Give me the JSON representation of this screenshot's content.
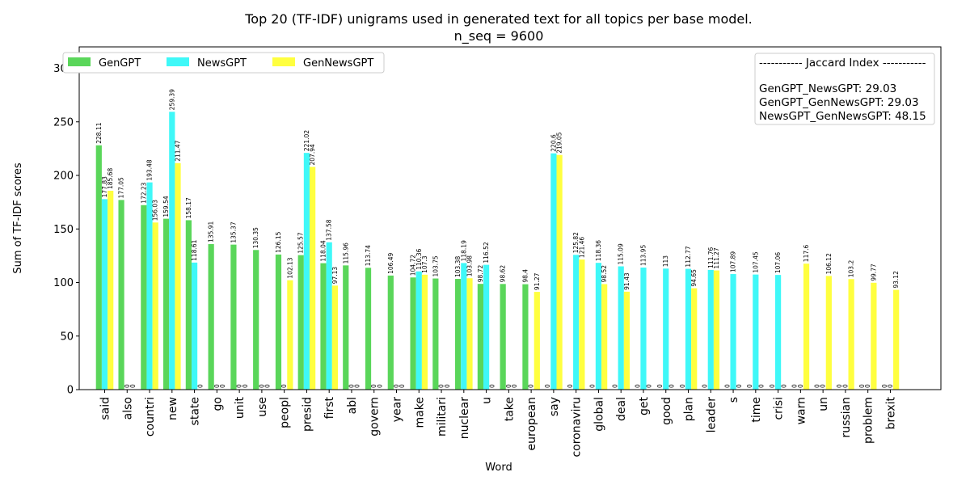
{
  "chart_data": {
    "type": "bar",
    "title_line1": "Top 20 (TF-IDF) unigrams used in generated text for all topics per base model.",
    "title_line2": "n_seq = 9600",
    "xlabel": "Word",
    "ylabel": "Sum of TF-IDF scores",
    "ylim": [
      0,
      320
    ],
    "yticks": [
      0,
      50,
      100,
      150,
      200,
      250,
      300
    ],
    "legend_position": "top-left",
    "grid": false,
    "categories": [
      "said",
      "also",
      "countri",
      "new",
      "state",
      "go",
      "unit",
      "use",
      "peopl",
      "presid",
      "first",
      "abl",
      "govern",
      "year",
      "make",
      "militari",
      "nuclear",
      "u",
      "take",
      "european",
      "say",
      "coronaviru",
      "global",
      "deal",
      "get",
      "good",
      "plan",
      "leader",
      "s",
      "time",
      "crisi",
      "warn",
      "un",
      "russian",
      "problem",
      "brexit"
    ],
    "series": [
      {
        "name": "GenGPT",
        "color": "#5ad65a",
        "values": [
          228.11,
          177.05,
          172.23,
          159.54,
          158.17,
          135.91,
          135.37,
          130.35,
          126.15,
          125.57,
          118.04,
          115.96,
          113.74,
          106.49,
          104.72,
          103.75,
          103.38,
          98.72,
          98.62,
          98.4,
          0,
          0,
          0,
          0,
          0,
          0,
          0,
          0,
          0,
          0,
          0,
          0,
          0,
          0,
          0,
          0
        ],
        "labels": [
          "228.11",
          "177.05",
          "172.23",
          "159.54",
          "158.17",
          "135.91",
          "135.37",
          "130.35",
          "126.15",
          "125.57",
          "118.04",
          "115.96",
          "113.74",
          "106.49",
          "104.72",
          "103.75",
          "103.38",
          "98.72",
          "98.62",
          "98.4",
          "0",
          "0",
          "0",
          "0",
          "0",
          "0",
          "0",
          "0",
          "0",
          "0",
          "0",
          "0",
          "0",
          "0",
          "0",
          "0"
        ]
      },
      {
        "name": "NewsGPT",
        "color": "#3ff8f8",
        "values": [
          177.83,
          0,
          193.48,
          259.39,
          118.61,
          0,
          0,
          0,
          0,
          221.02,
          137.58,
          0,
          0,
          0,
          110.36,
          0,
          118.19,
          116.52,
          0,
          0,
          220.6,
          125.82,
          118.36,
          115.09,
          113.95,
          113,
          112.77,
          111.76,
          107.89,
          107.45,
          107.06,
          0,
          0,
          0,
          0,
          0
        ],
        "labels": [
          "177.83",
          "0",
          "193.48",
          "259.39",
          "118.61",
          "0",
          "0",
          "0",
          "0",
          "221.02",
          "137.58",
          "0",
          "0",
          "0",
          "110.36",
          "0",
          "118.19",
          "116.52",
          "0",
          "0",
          "220.6",
          "125.82",
          "118.36",
          "115.09",
          "113.95",
          "113",
          "112.77",
          "111.76",
          "107.89",
          "107.45",
          "107.06",
          "0",
          "0",
          "0",
          "0",
          "0"
        ]
      },
      {
        "name": "GenNewsGPT",
        "color": "#ffff3f",
        "values": [
          185.68,
          0,
          156.03,
          211.47,
          0,
          0,
          0,
          0,
          102.13,
          207.94,
          97.13,
          0,
          0,
          0,
          107.3,
          0,
          103.98,
          0,
          0,
          91.27,
          219.05,
          121.46,
          98.52,
          91.43,
          0,
          0,
          94.65,
          111.27,
          0,
          0,
          0,
          117.6,
          106.12,
          103.2,
          99.77,
          93.12
        ],
        "labels": [
          "185.68",
          "0",
          "156.03",
          "211.47",
          "0",
          "0",
          "0",
          "0",
          "102.13",
          "207.94",
          "97.13",
          "0",
          "0",
          "0",
          "107.3",
          "0",
          "103.98",
          "0",
          "0",
          "91.27",
          "219.05",
          "121.46",
          "98.52",
          "91.43",
          "0",
          "0",
          "94.65",
          "111.27",
          "0",
          "0",
          "0",
          "117.6",
          "106.12",
          "103.2",
          "99.77",
          "93.12"
        ]
      }
    ],
    "annotation": {
      "header": "----------- Jaccard Index -----------",
      "lines": [
        "GenGPT_NewsGPT: 29.03",
        "GenGPT_GenNewsGPT: 29.03",
        "NewsGPT_GenNewsGPT: 48.15"
      ]
    }
  }
}
